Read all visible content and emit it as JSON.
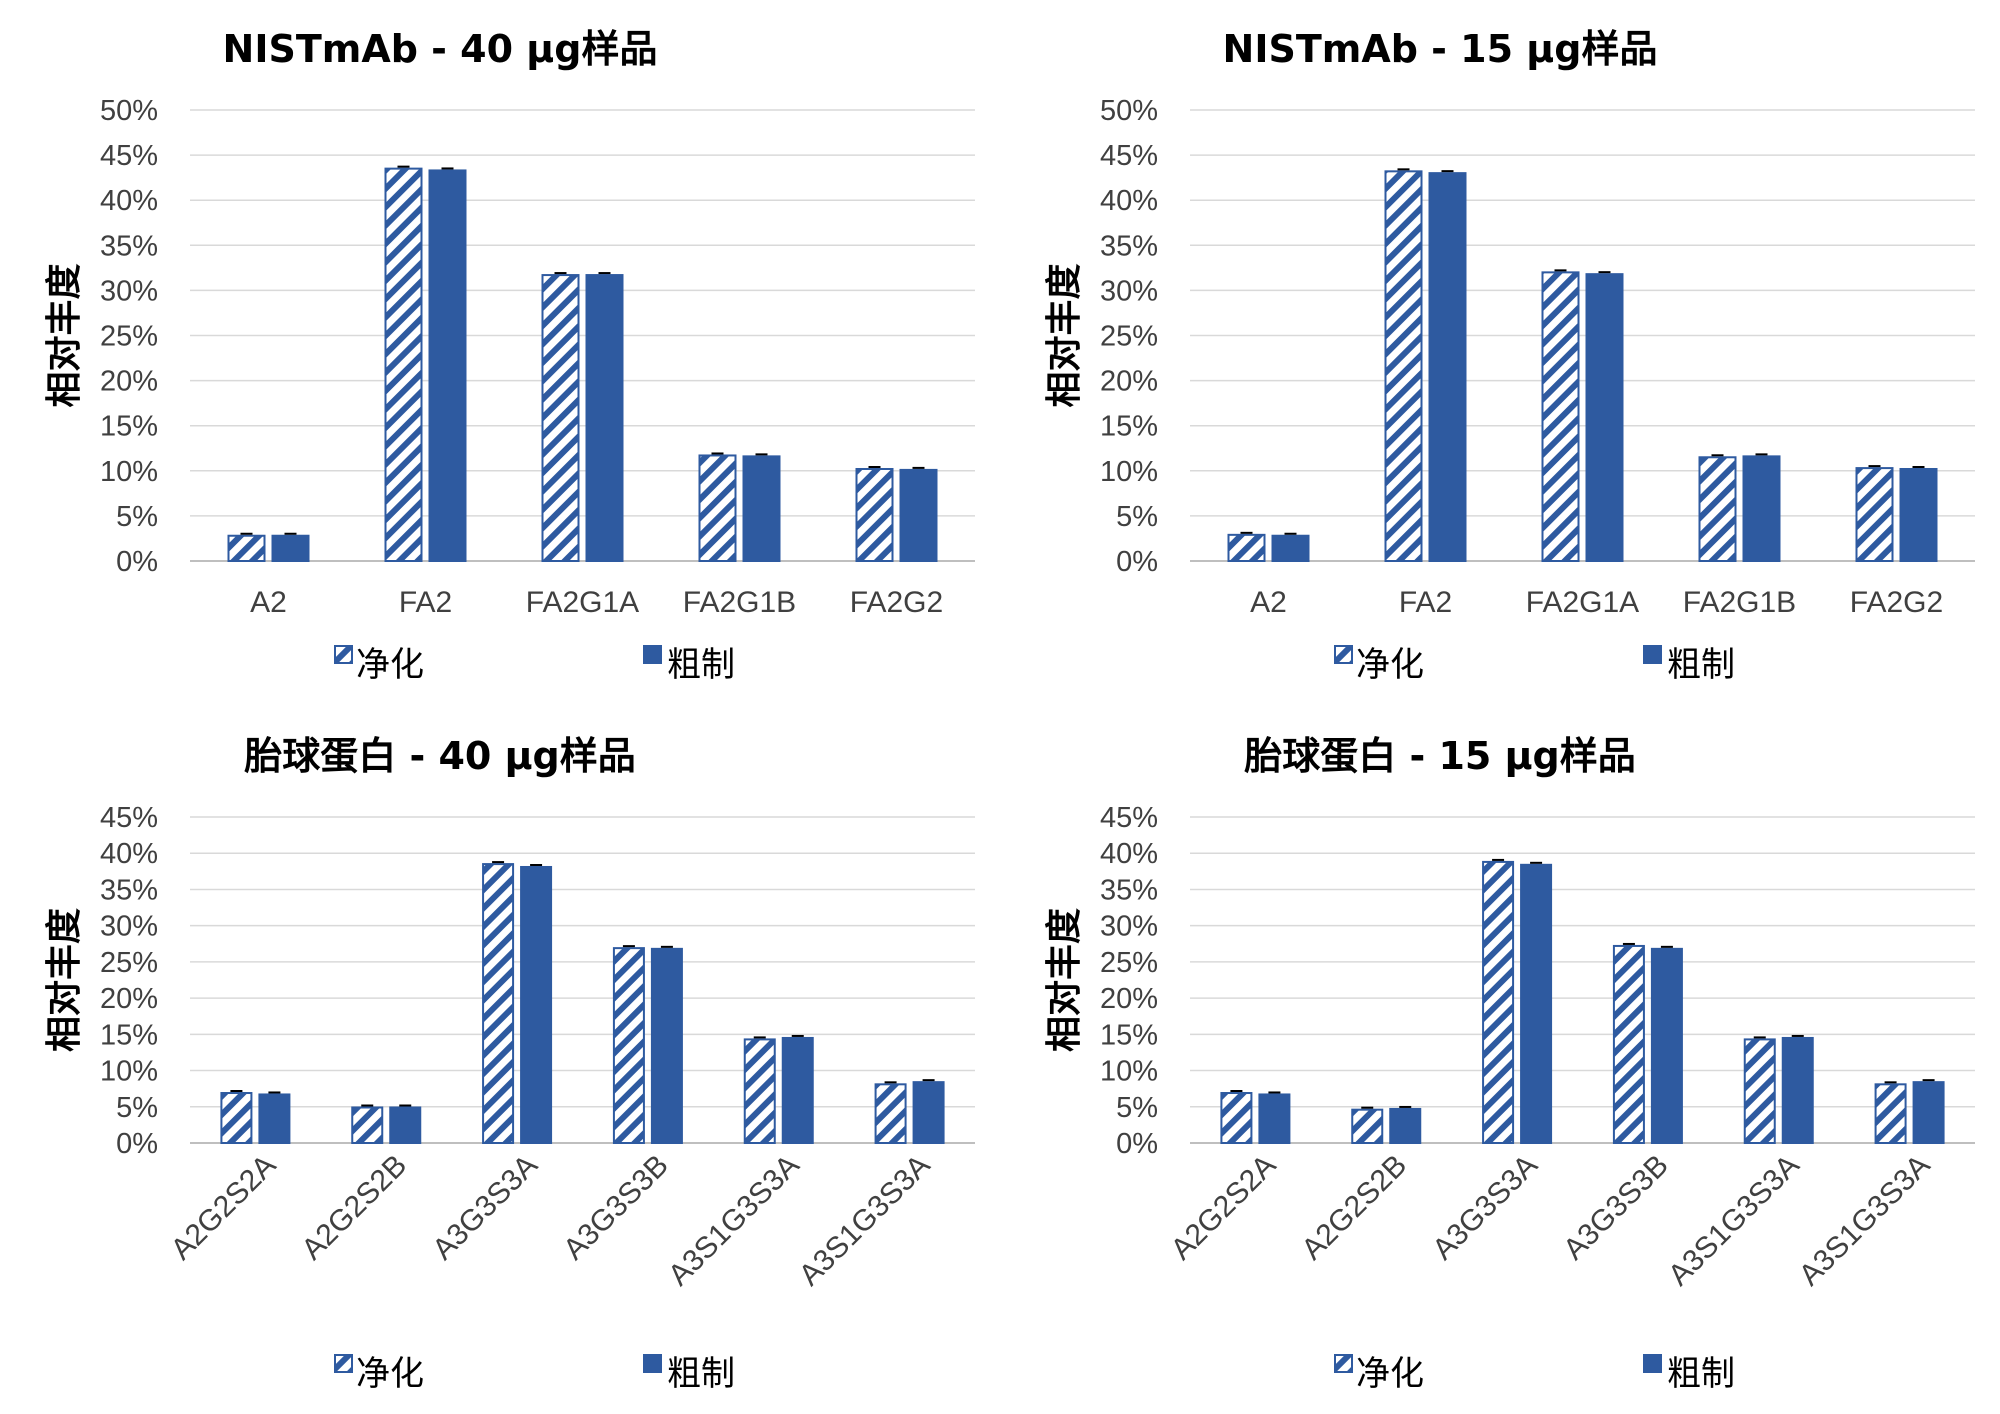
{
  "colors": {
    "bar": "#2e5aa0",
    "purified_fill": "hatched-blue",
    "crude_fill": "#2e5aa0"
  },
  "legend": {
    "purified": "净化",
    "crude": "粗制"
  },
  "chart_data": [
    {
      "type": "bar",
      "title": "NISTmAb - 40 µg样品",
      "ylabel": "相对丰度",
      "xlabel": "",
      "ylim": [
        0,
        50
      ],
      "yticks": [
        "0%",
        "5%",
        "10%",
        "15%",
        "20%",
        "25%",
        "30%",
        "35%",
        "40%",
        "45%",
        "50%"
      ],
      "categories": [
        "A2",
        "FA2",
        "FA2G1A",
        "FA2G1B",
        "FA2G2"
      ],
      "rotate_labels": false,
      "series": [
        {
          "name": "净化",
          "values": [
            2.8,
            43.5,
            31.7,
            11.7,
            10.2
          ]
        },
        {
          "name": "粗制",
          "values": [
            2.8,
            43.3,
            31.7,
            11.6,
            10.1
          ]
        }
      ]
    },
    {
      "type": "bar",
      "title": "NISTmAb - 15 µg样品",
      "ylabel": "相对丰度",
      "xlabel": "",
      "ylim": [
        0,
        50
      ],
      "yticks": [
        "0%",
        "5%",
        "10%",
        "15%",
        "20%",
        "25%",
        "30%",
        "35%",
        "40%",
        "45%",
        "50%"
      ],
      "categories": [
        "A2",
        "FA2",
        "FA2G1A",
        "FA2G1B",
        "FA2G2"
      ],
      "rotate_labels": false,
      "series": [
        {
          "name": "净化",
          "values": [
            2.9,
            43.2,
            32.0,
            11.5,
            10.3
          ]
        },
        {
          "name": "粗制",
          "values": [
            2.8,
            43.0,
            31.8,
            11.6,
            10.2
          ]
        }
      ]
    },
    {
      "type": "bar",
      "title": "胎球蛋白 - 40 µg样品",
      "ylabel": "相对丰度",
      "xlabel": "",
      "ylim": [
        0,
        45
      ],
      "yticks": [
        "0%",
        "5%",
        "10%",
        "15%",
        "20%",
        "25%",
        "30%",
        "35%",
        "40%",
        "45%"
      ],
      "categories": [
        "A2G2S2A",
        "A2G2S2B",
        "A3G3S3A",
        "A3G3S3B",
        "A3S1G3S3A",
        "A3S1G3S3A"
      ],
      "rotate_labels": true,
      "series": [
        {
          "name": "净化",
          "values": [
            6.9,
            4.9,
            38.5,
            26.9,
            14.3,
            8.1
          ]
        },
        {
          "name": "粗制",
          "values": [
            6.7,
            4.9,
            38.1,
            26.8,
            14.5,
            8.4
          ]
        }
      ]
    },
    {
      "type": "bar",
      "title": "胎球蛋白 - 15 µg样品",
      "ylabel": "相对丰度",
      "xlabel": "",
      "ylim": [
        0,
        45
      ],
      "yticks": [
        "0%",
        "5%",
        "10%",
        "15%",
        "20%",
        "25%",
        "30%",
        "35%",
        "40%",
        "45%"
      ],
      "categories": [
        "A2G2S2A",
        "A2G2S2B",
        "A3G3S3A",
        "A3G3S3B",
        "A3S1G3S3A",
        "A3S1G3S3A"
      ],
      "rotate_labels": true,
      "series": [
        {
          "name": "净化",
          "values": [
            6.9,
            4.6,
            38.8,
            27.2,
            14.3,
            8.1
          ]
        },
        {
          "name": "粗制",
          "values": [
            6.7,
            4.7,
            38.4,
            26.8,
            14.5,
            8.4
          ]
        }
      ]
    }
  ]
}
